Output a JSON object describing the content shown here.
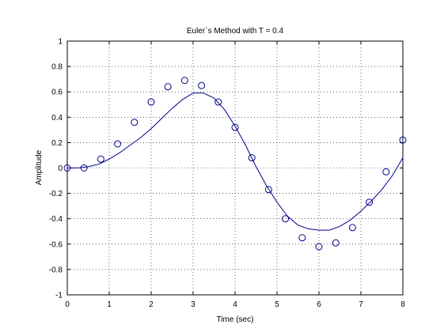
{
  "chart_data": {
    "type": "line",
    "title": "Euler`s Method with T = 0.4",
    "xlabel": "Time (sec)",
    "ylabel": "Amplitude",
    "xlim": [
      0,
      8
    ],
    "ylim": [
      -1,
      1
    ],
    "xticks": [
      "0",
      "1",
      "2",
      "3",
      "4",
      "5",
      "6",
      "7",
      "8"
    ],
    "yticks": [
      "-1",
      "-0.8",
      "-0.6",
      "-0.4",
      "-0.2",
      "0",
      "0.2",
      "0.4",
      "0.6",
      "0.8",
      "1"
    ],
    "grid": true,
    "series": [
      {
        "style": "line",
        "color": "#00008B",
        "x": [
          0,
          0.25,
          0.5,
          0.75,
          1.0,
          1.25,
          1.5,
          1.75,
          2.0,
          2.25,
          2.5,
          2.75,
          3.0,
          3.25,
          3.5,
          3.75,
          4.0,
          4.25,
          4.5,
          4.75,
          5.0,
          5.25,
          5.5,
          5.75,
          6.0,
          6.25,
          6.5,
          6.75,
          7.0,
          7.25,
          7.5,
          7.75,
          8.0
        ],
        "y": [
          0,
          0.0,
          0.01,
          0.03,
          0.07,
          0.12,
          0.18,
          0.24,
          0.31,
          0.39,
          0.47,
          0.54,
          0.59,
          0.59,
          0.55,
          0.46,
          0.33,
          0.18,
          0.01,
          -0.14,
          -0.27,
          -0.38,
          -0.45,
          -0.48,
          -0.49,
          -0.49,
          -0.46,
          -0.41,
          -0.34,
          -0.26,
          -0.17,
          -0.06,
          0.08
        ]
      },
      {
        "style": "markers",
        "marker": "circle",
        "color": "#00008B",
        "x": [
          0,
          0.4,
          0.8,
          1.2,
          1.6,
          2.0,
          2.4,
          2.8,
          3.2,
          3.6,
          4.0,
          4.4,
          4.8,
          5.2,
          5.6,
          6.0,
          6.4,
          6.8,
          7.2,
          7.6,
          8.0
        ],
        "y": [
          0,
          0.0,
          0.07,
          0.19,
          0.36,
          0.52,
          0.64,
          0.69,
          0.65,
          0.52,
          0.32,
          0.08,
          -0.17,
          -0.4,
          -0.55,
          -0.62,
          -0.59,
          -0.47,
          -0.27,
          -0.03,
          0.22
        ]
      }
    ]
  }
}
